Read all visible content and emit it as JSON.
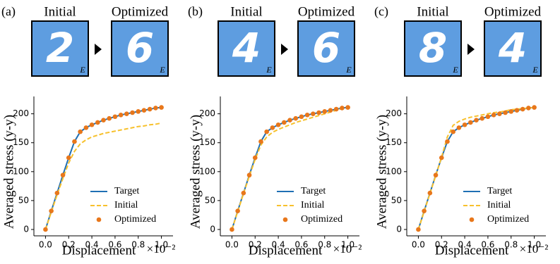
{
  "chart_data": [
    {
      "type": "line",
      "title": "(a)",
      "initial_label": "Initial",
      "optimized_label": "Optimized",
      "initial_digit": "2",
      "optimized_digit": "6",
      "image_tag": "E",
      "xlabel": "Displacement",
      "x_scale_label": "×10⁻²",
      "ylabel": "Averaged stress (y-y)",
      "x": [
        0,
        0.05,
        0.1,
        0.15,
        0.2,
        0.25,
        0.3,
        0.35,
        0.4,
        0.45,
        0.5,
        0.55,
        0.6,
        0.65,
        0.7,
        0.75,
        0.8,
        0.85,
        0.9,
        0.95,
        1.0
      ],
      "xlim": [
        -0.1,
        1.1
      ],
      "xticks": [
        {
          "value": 0,
          "label": "0.0"
        },
        0.2,
        0.4,
        0.6,
        0.8,
        {
          "value": 1,
          "label": "1.0"
        }
      ],
      "ylim": [
        -11,
        230
      ],
      "yticks": [
        0,
        50,
        100,
        150,
        200
      ],
      "legend": "lower right",
      "series": [
        {
          "name": "Target",
          "color": "#1f6fb4",
          "style": "solid",
          "values": [
            0,
            32,
            63,
            94,
            124,
            152,
            169,
            176,
            181,
            185,
            189,
            192,
            195,
            198,
            200,
            202,
            204,
            206,
            208,
            210,
            211
          ]
        },
        {
          "name": "Initial",
          "color": "#f7c12d",
          "style": "dashed",
          "values": [
            0,
            30,
            60,
            88,
            115,
            135,
            148,
            155,
            160,
            163,
            166,
            168,
            170,
            172,
            174,
            176,
            178,
            179,
            181,
            182,
            184
          ]
        },
        {
          "name": "Optimized",
          "color": "#e8771b",
          "style": "markers",
          "values": [
            0,
            32,
            63,
            94,
            124,
            152,
            169,
            176,
            181,
            185,
            189,
            192,
            195,
            198,
            200,
            202,
            204,
            206,
            208,
            210,
            211
          ]
        }
      ]
    },
    {
      "type": "line",
      "title": "(b)",
      "initial_label": "Initial",
      "optimized_label": "Optimized",
      "initial_digit": "4",
      "optimized_digit": "6",
      "image_tag": "E",
      "xlabel": "Displacement",
      "x_scale_label": "×10⁻²",
      "ylabel": "Averaged stress (y-y)",
      "x": [
        0,
        0.05,
        0.1,
        0.15,
        0.2,
        0.25,
        0.3,
        0.35,
        0.4,
        0.45,
        0.5,
        0.55,
        0.6,
        0.65,
        0.7,
        0.75,
        0.8,
        0.85,
        0.9,
        0.95,
        1.0
      ],
      "xlim": [
        -0.1,
        1.1
      ],
      "xticks": [
        {
          "value": 0,
          "label": "0.0"
        },
        0.2,
        0.4,
        0.6,
        0.8,
        {
          "value": 1,
          "label": "1.0"
        }
      ],
      "ylim": [
        -11,
        230
      ],
      "yticks": [
        0,
        50,
        100,
        150,
        200
      ],
      "legend": "lower right",
      "series": [
        {
          "name": "Target",
          "color": "#1f6fb4",
          "style": "solid",
          "values": [
            0,
            32,
            63,
            94,
            124,
            152,
            169,
            176,
            181,
            185,
            189,
            192,
            195,
            198,
            200,
            202,
            204,
            206,
            208,
            210,
            211
          ]
        },
        {
          "name": "Initial",
          "color": "#f7c12d",
          "style": "dashed",
          "values": [
            0,
            31,
            62,
            92,
            121,
            146,
            160,
            168,
            173,
            177,
            181,
            185,
            188,
            191,
            194,
            197,
            200,
            203,
            206,
            209,
            211
          ]
        },
        {
          "name": "Optimized",
          "color": "#e8771b",
          "style": "markers",
          "values": [
            0,
            32,
            63,
            94,
            124,
            152,
            169,
            176,
            181,
            185,
            189,
            192,
            195,
            198,
            200,
            202,
            204,
            206,
            208,
            210,
            211
          ]
        }
      ]
    },
    {
      "type": "line",
      "title": "(c)",
      "initial_label": "Initial",
      "optimized_label": "Optimized",
      "initial_digit": "8",
      "optimized_digit": "4",
      "image_tag": "E",
      "xlabel": "Displacement",
      "x_scale_label": "×10⁻²",
      "ylabel": "Averaged stress (y-y)",
      "x": [
        0,
        0.05,
        0.1,
        0.15,
        0.2,
        0.25,
        0.3,
        0.35,
        0.4,
        0.45,
        0.5,
        0.55,
        0.6,
        0.65,
        0.7,
        0.75,
        0.8,
        0.85,
        0.9,
        0.95,
        1.0
      ],
      "xlim": [
        -0.1,
        1.1
      ],
      "xticks": [
        {
          "value": 0,
          "label": "0.0"
        },
        0.2,
        0.4,
        0.6,
        0.8,
        {
          "value": 1,
          "label": "1.0"
        }
      ],
      "ylim": [
        -11,
        230
      ],
      "yticks": [
        0,
        50,
        100,
        150,
        200
      ],
      "legend": "lower right",
      "series": [
        {
          "name": "Target",
          "color": "#1f6fb4",
          "style": "solid",
          "values": [
            0,
            32,
            63,
            94,
            124,
            152,
            169,
            176,
            181,
            185,
            189,
            192,
            195,
            198,
            200,
            202,
            204,
            206,
            208,
            210,
            211
          ]
        },
        {
          "name": "Initial",
          "color": "#f7c12d",
          "style": "dashed",
          "values": [
            0,
            31,
            62,
            93,
            125,
            160,
            180,
            187,
            191,
            194,
            196,
            198,
            200,
            202,
            203,
            205,
            207,
            208,
            209,
            210,
            211
          ]
        },
        {
          "name": "Optimized",
          "color": "#e8771b",
          "style": "markers",
          "values": [
            0,
            32,
            63,
            94,
            124,
            152,
            169,
            176,
            181,
            185,
            189,
            192,
            195,
            198,
            200,
            202,
            204,
            206,
            208,
            210,
            211
          ]
        }
      ]
    }
  ]
}
